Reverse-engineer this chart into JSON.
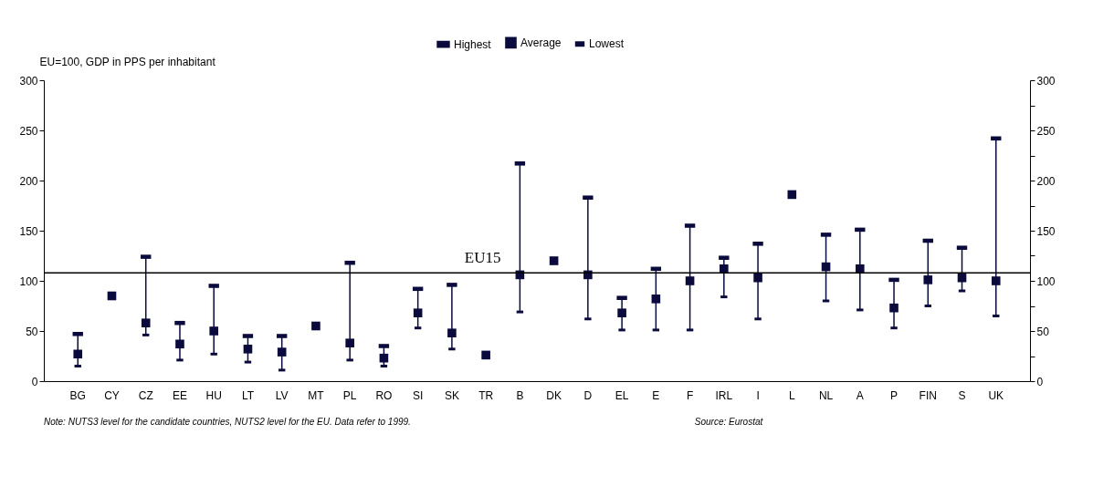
{
  "chart_data": {
    "type": "scatter",
    "ylabel": "EU=100, GDP in PPS per inhabitant",
    "categories": [
      "BG",
      "CY",
      "CZ",
      "EE",
      "HU",
      "LT",
      "LV",
      "MT",
      "PL",
      "RO",
      "SI",
      "SK",
      "TR",
      "B",
      "DK",
      "D",
      "EL",
      "E",
      "F",
      "IRL",
      "I",
      "L",
      "NL",
      "A",
      "P",
      "FIN",
      "S",
      "UK"
    ],
    "series": [
      {
        "name": "Highest",
        "color": "#0a0a3c",
        "values": [
          47,
          null,
          124,
          58,
          95,
          45,
          45,
          null,
          118,
          35,
          92,
          96,
          null,
          217,
          null,
          183,
          83,
          112,
          155,
          123,
          137,
          null,
          146,
          151,
          101,
          140,
          133,
          242
        ]
      },
      {
        "name": "Average",
        "color": "#0a0a3c",
        "marker": "square",
        "values": [
          27,
          85,
          58,
          37,
          50,
          32,
          29,
          55,
          38,
          23,
          68,
          48,
          26,
          106,
          120,
          106,
          68,
          82,
          100,
          112,
          103,
          186,
          114,
          112,
          73,
          101,
          103,
          100
        ]
      },
      {
        "name": "Lowest",
        "color": "#0a0a3c",
        "values": [
          15,
          null,
          46,
          21,
          27,
          19,
          11,
          null,
          21,
          15,
          53,
          32,
          null,
          69,
          null,
          62,
          51,
          51,
          51,
          84,
          62,
          null,
          80,
          71,
          53,
          75,
          90,
          65
        ]
      }
    ],
    "ylim": [
      0,
      300
    ],
    "yticks": [
      0,
      {
        "value": 25,
        "label": null
      },
      50,
      {
        "value": 75,
        "label": null
      },
      100,
      {
        "value": 125,
        "label": null
      },
      150,
      {
        "value": 175,
        "label": null
      },
      200,
      {
        "value": 225,
        "label": null
      },
      250,
      {
        "value": 275,
        "label": null
      },
      300
    ],
    "y2lim": [
      0,
      300
    ],
    "y2ticks": [
      0,
      {
        "value": 25,
        "label": null
      },
      50,
      {
        "value": 75,
        "label": null
      },
      100,
      {
        "value": 125,
        "label": null
      },
      150,
      {
        "value": 175,
        "label": null
      },
      200,
      {
        "value": 225,
        "label": null
      },
      250,
      {
        "value": 275,
        "label": null
      },
      300
    ],
    "ref_lines": [
      {
        "axis": "y",
        "value": 108,
        "label": "EU15",
        "color": "#000000"
      }
    ],
    "legend": "top",
    "grid": false,
    "annotations": [
      "Note: NUTS3 level for the candidate countries, NUTS2 level for the EU. Data refer to 1999.",
      "Source: Eurostat"
    ]
  }
}
